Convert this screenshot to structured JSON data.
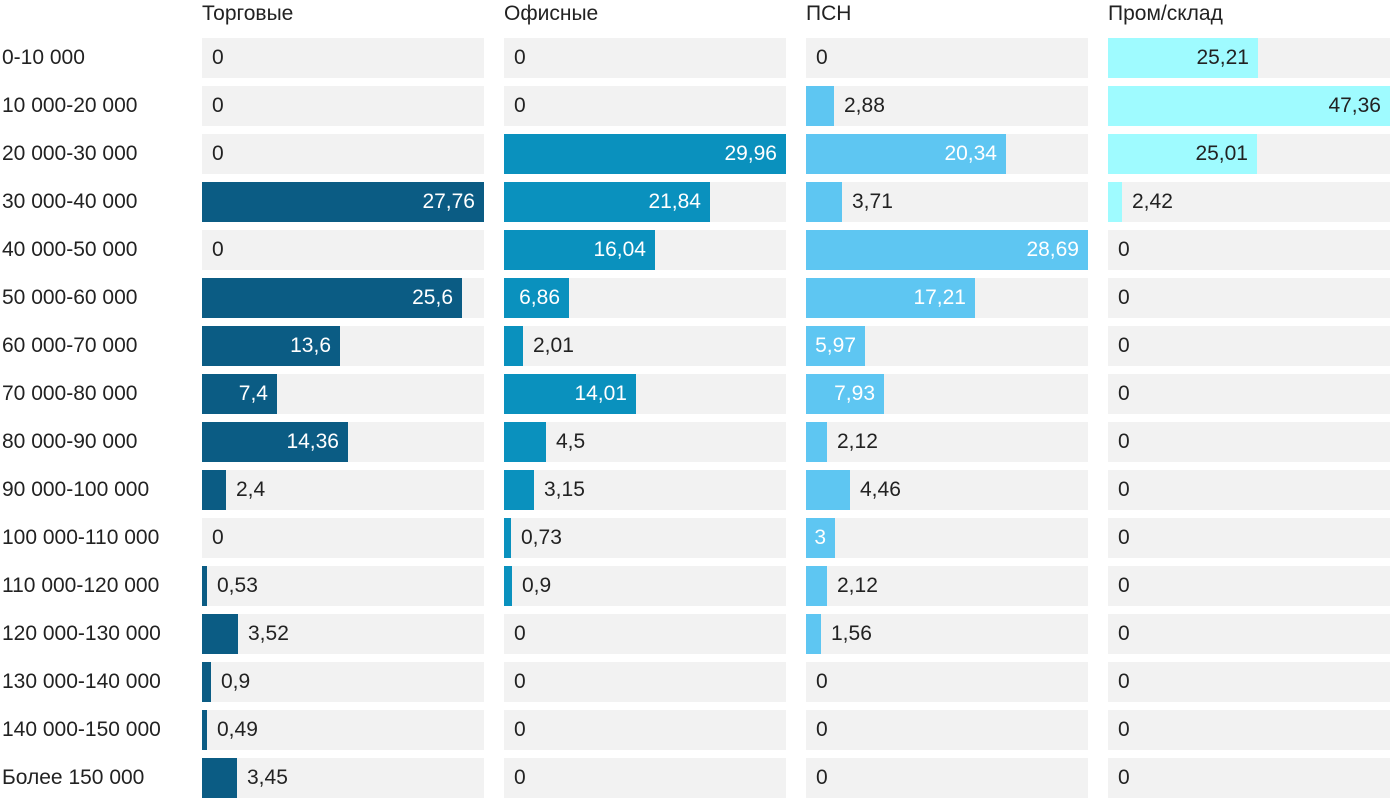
{
  "chart_data": {
    "type": "bar",
    "orientation": "horizontal",
    "layout": "small-multiples",
    "categories": [
      "0-10 000",
      "10 000-20 000",
      "20 000-30 000",
      "30 000-40 000",
      "40 000-50 000",
      "50 000-60 000",
      "60 000-70 000",
      "70 000-80 000",
      "80 000-90 000",
      "90 000-100 000",
      "100 000-110 000",
      "110 000-120 000",
      "120 000-130 000",
      "130 000-140 000",
      "140 000-150 000",
      "Более 150 000"
    ],
    "series": [
      {
        "name": "Торговые",
        "color": "#0b5c84",
        "max": 27.76,
        "values": [
          0,
          0,
          0,
          27.76,
          0,
          25.6,
          13.6,
          7.4,
          14.36,
          2.4,
          0,
          0.53,
          3.52,
          0.9,
          0.49,
          3.45
        ],
        "labels": [
          "0",
          "0",
          "0",
          "27,76",
          "0",
          "25,6",
          "13,6",
          "7,4",
          "14,36",
          "2,4",
          "0",
          "0,53",
          "3,52",
          "0,9",
          "0,49",
          "3,45"
        ]
      },
      {
        "name": "Офисные",
        "color": "#0a91be",
        "max": 29.96,
        "values": [
          0,
          0,
          29.96,
          21.84,
          16.04,
          6.86,
          2.01,
          14.01,
          4.5,
          3.15,
          0.73,
          0.9,
          0,
          0,
          0,
          0
        ],
        "labels": [
          "0",
          "0",
          "29,96",
          "21,84",
          "16,04",
          "6,86",
          "2,01",
          "14,01",
          "4,5",
          "3,15",
          "0,73",
          "0,9",
          "0",
          "0",
          "0",
          "0"
        ]
      },
      {
        "name": "ПСН",
        "color": "#5ec6f2",
        "max": 28.69,
        "values": [
          0,
          2.88,
          20.34,
          3.71,
          28.69,
          17.21,
          5.97,
          7.93,
          2.12,
          4.46,
          3,
          2.12,
          1.56,
          0,
          0,
          0
        ],
        "labels": [
          "0",
          "2,88",
          "20,34",
          "3,71",
          "28,69",
          "17,21",
          "5,97",
          "7,93",
          "2,12",
          "4,46",
          "3",
          "2,12",
          "1,56",
          "0",
          "0",
          "0"
        ]
      },
      {
        "name": "Пром/склад",
        "color": "#9ffbff",
        "max": 47.36,
        "values": [
          25.21,
          47.36,
          25.01,
          2.42,
          0,
          0,
          0,
          0,
          0,
          0,
          0,
          0,
          0,
          0,
          0,
          0
        ],
        "labels": [
          "25,21",
          "47,36",
          "25,01",
          "2,42",
          "0",
          "0",
          "0",
          "0",
          "0",
          "0",
          "0",
          "0",
          "0",
          "0",
          "0",
          "0"
        ]
      }
    ],
    "title": "",
    "xlabel": "",
    "ylabel": ""
  }
}
